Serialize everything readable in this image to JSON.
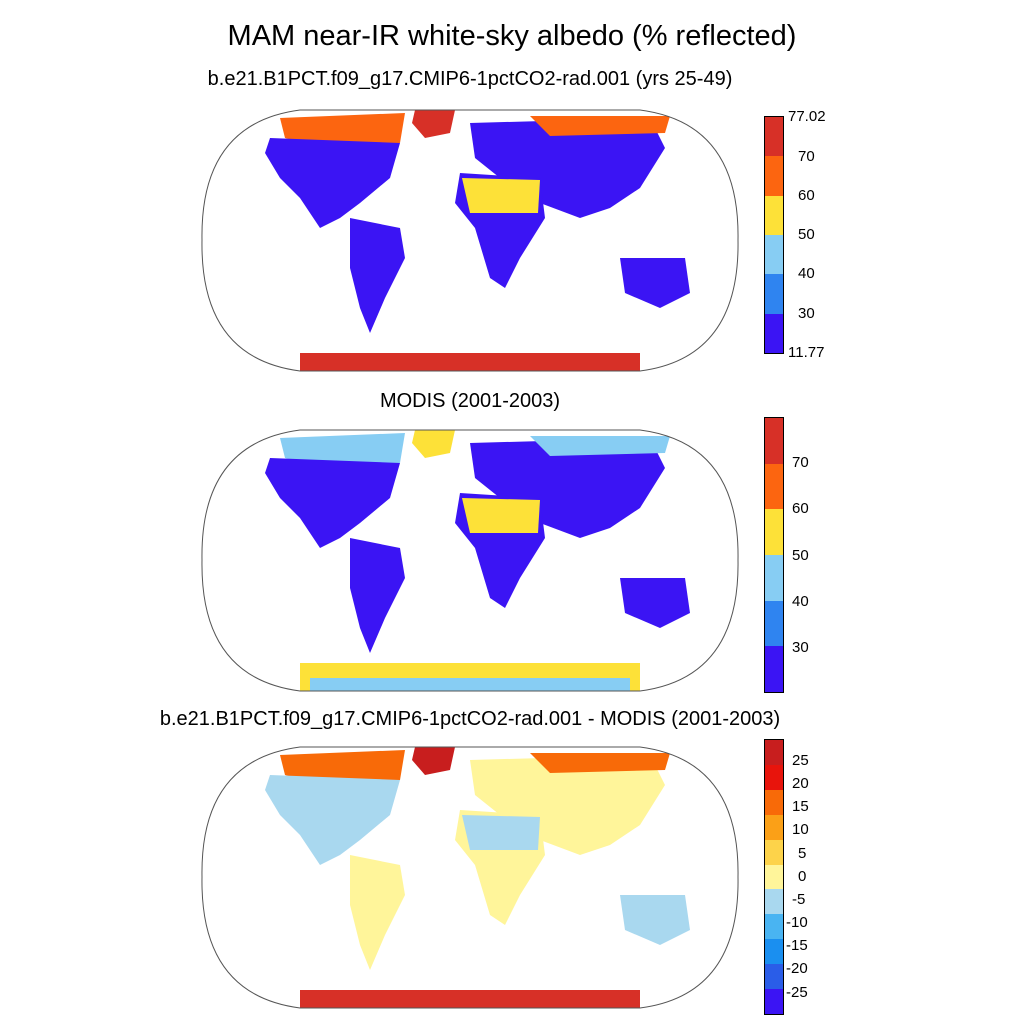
{
  "title": "MAM near-IR white-sky albedo (% reflected)",
  "panels": [
    {
      "title": "b.e21.B1PCT.f09_g17.CMIP6-1pctCO2-rad.001 (yrs 25-49)",
      "colorbar": {
        "colors": [
          "#3b14f4",
          "#2f84f0",
          "#87cdf3",
          "#fde138",
          "#fc6510",
          "#d73027"
        ],
        "tick_labels": [
          "77.02",
          "70",
          "60",
          "50",
          "40",
          "30",
          "11.77"
        ],
        "min": 11.77,
        "max": 77.02
      }
    },
    {
      "title": "MODIS (2001-2003)",
      "colorbar": {
        "colors": [
          "#3b14f4",
          "#2f84f0",
          "#87cdf3",
          "#fde138",
          "#fc6510",
          "#d73027"
        ],
        "tick_labels": [
          "70",
          "60",
          "50",
          "40",
          "30"
        ]
      }
    },
    {
      "title": "b.e21.B1PCT.f09_g17.CMIP6-1pctCO2-rad.001 - MODIS (2001-2003)",
      "colorbar": {
        "colors": [
          "#3b14f4",
          "#2a5de8",
          "#1a8ff0",
          "#49b4f2",
          "#a9d8ef",
          "#fff59a",
          "#fdd34a",
          "#fba017",
          "#f86a08",
          "#e8140c",
          "#c81e1e"
        ],
        "tick_labels": [
          "25",
          "20",
          "15",
          "10",
          "5",
          "0",
          "-5",
          "-10",
          "-15",
          "-20",
          "-25"
        ]
      }
    }
  ]
}
